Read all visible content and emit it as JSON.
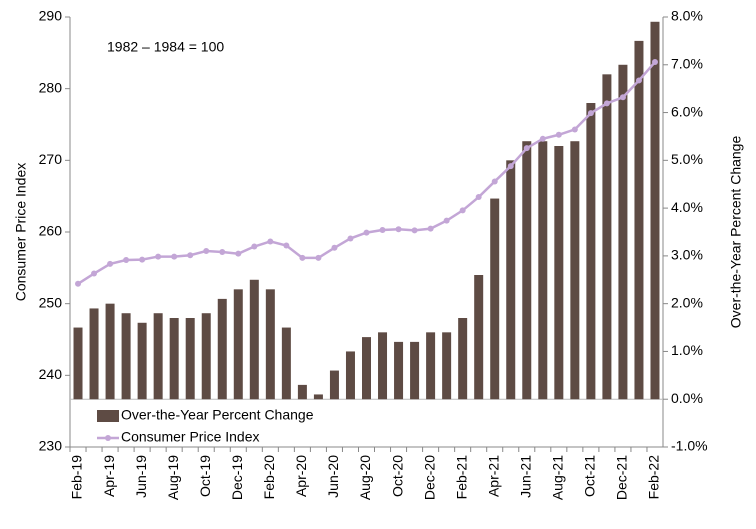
{
  "chart_data": {
    "type": "bar-line",
    "annotation": "1982 – 1984 = 100",
    "y_label": "Consumer Price Index",
    "y2_label": "Over-the-Year Percent Change",
    "categories": [
      "Feb-19",
      null,
      "Apr-19",
      null,
      "Jun-19",
      null,
      "Aug-19",
      null,
      "Oct-19",
      null,
      "Dec-19",
      null,
      "Feb-20",
      null,
      "Apr-20",
      null,
      "Jun-20",
      null,
      "Aug-20",
      null,
      "Oct-20",
      null,
      "Dec-20",
      null,
      "Feb-21",
      null,
      "Apr-21",
      null,
      "Jun-21",
      null,
      "Aug-21",
      null,
      "Oct-21",
      null,
      "Dec-21",
      null,
      "Feb-22"
    ],
    "series": [
      {
        "name": "Over-the-Year Percent Change",
        "type": "bar",
        "axis": "y2",
        "color": "#5e4b44",
        "values": [
          1.5,
          1.9,
          2.0,
          1.8,
          1.6,
          1.8,
          1.7,
          1.7,
          1.8,
          2.1,
          2.3,
          2.5,
          2.3,
          1.5,
          0.3,
          0.1,
          0.6,
          1.0,
          1.3,
          1.4,
          1.2,
          1.2,
          1.4,
          1.4,
          1.7,
          2.6,
          4.2,
          5.0,
          5.4,
          5.4,
          5.3,
          5.4,
          6.2,
          6.8,
          7.0,
          7.5,
          7.9
        ]
      },
      {
        "name": "Consumer Price Index",
        "type": "line",
        "axis": "y",
        "color": "#c3a6d6",
        "values": [
          252.776,
          254.202,
          255.548,
          256.092,
          256.143,
          256.571,
          256.558,
          256.759,
          257.346,
          257.208,
          256.974,
          257.971,
          258.678,
          258.115,
          256.389,
          256.394,
          257.797,
          259.101,
          259.918,
          260.28,
          260.388,
          260.229,
          260.474,
          261.582,
          263.014,
          264.877,
          267.054,
          269.195,
          271.696,
          273.003,
          273.567,
          274.31,
          276.589,
          277.948,
          278.802,
          281.148,
          283.716
        ]
      }
    ],
    "ylim": [
      230,
      290
    ],
    "yticks": [
      230,
      240,
      250,
      260,
      270,
      280,
      290
    ],
    "y2lim": [
      -1,
      8
    ],
    "y2ticks": [
      {
        "value": -1,
        "label": "-1.0%"
      },
      {
        "value": 0,
        "label": "0.0%"
      },
      {
        "value": 1,
        "label": "1.0%"
      },
      {
        "value": 2,
        "label": "2.0%"
      },
      {
        "value": 3,
        "label": "3.0%"
      },
      {
        "value": 4,
        "label": "4.0%"
      },
      {
        "value": 5,
        "label": "5.0%"
      },
      {
        "value": 6,
        "label": "6.0%"
      },
      {
        "value": 7,
        "label": "7.0%"
      },
      {
        "value": 8,
        "label": "8.0%"
      }
    ],
    "legend": "bottom-left"
  }
}
